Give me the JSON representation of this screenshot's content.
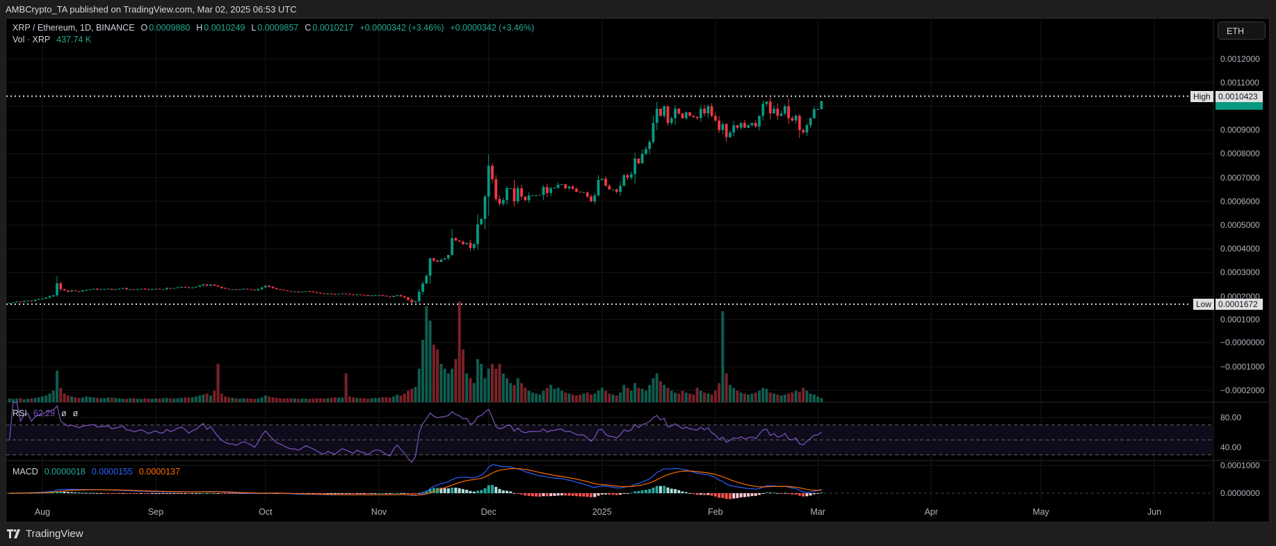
{
  "header": {
    "published": "AMBCrypto_TA published on TradingView.com, Mar 02, 2025 06:53 UTC"
  },
  "legend": {
    "symbol": "XRP / Ethereum, 1D, BINANCE",
    "o_label": "O",
    "o": "0.0009880",
    "h_label": "H",
    "h": "0.0010249",
    "l_label": "L",
    "l": "0.0009857",
    "c_label": "C",
    "c": "0.0010217",
    "change1": "+0.0000342 (+3.46%)",
    "change2": "+0.0000342 (+3.46%)",
    "vol_label": "Vol · XRP",
    "vol_value": "437.74 K",
    "rsi_label": "RSI",
    "rsi_value": "62.29",
    "rsi_icon1": "ø",
    "rsi_icon2": "ø",
    "macd_label": "MACD",
    "macd_hist": "0.0000018",
    "macd_line": "0.0000155",
    "macd_signal": "0.0000137"
  },
  "currency_button": "ETH",
  "price_axis": [
    "0.0012000",
    "0.0011000",
    "0.0009000",
    "0.0008000",
    "0.0007000",
    "0.0006000",
    "0.0005000",
    "0.0004000",
    "0.0003000",
    "0.0002000"
  ],
  "volume_axis": [
    "0.0001000",
    "−0.0000000",
    "−0.0001000",
    "−0.0002000"
  ],
  "rsi_axis": [
    "80.00",
    "40.00"
  ],
  "macd_axis": [
    "0.0001000",
    "0.0000000"
  ],
  "high": {
    "label": "High",
    "value": "0.0010423"
  },
  "low": {
    "label": "Low",
    "value": "0.0001672"
  },
  "current_price": "0.0010217",
  "time_axis": [
    "Aug",
    "Sep",
    "Oct",
    "Nov",
    "Dec",
    "2025",
    "Feb",
    "Mar",
    "Apr",
    "May",
    "Jun"
  ],
  "footer": {
    "logo_text": "TradingView"
  },
  "colors": {
    "up": "#089981",
    "down": "#f23645",
    "rsi": "#7e57c2",
    "macd": "#2962ff",
    "signal": "#ff6d00",
    "bg": "#000000"
  },
  "chart_data": {
    "type": "candlestick",
    "interval": "1D",
    "start_date": "2024-07-23",
    "end_date": "2025-03-02",
    "last_open": 0.000988,
    "last_high": 0.0010249,
    "last_low": 0.0009857,
    "close_e4": [
      1.72,
      1.75,
      1.78,
      1.76,
      1.8,
      1.82,
      1.8,
      1.85,
      1.88,
      1.9,
      1.95,
      2.0,
      2.05,
      2.55,
      2.3,
      2.25,
      2.2,
      2.25,
      2.22,
      2.2,
      2.25,
      2.28,
      2.3,
      2.32,
      2.28,
      2.3,
      2.3,
      2.32,
      2.28,
      2.3,
      2.32,
      2.35,
      2.3,
      2.3,
      2.28,
      2.3,
      2.32,
      2.3,
      2.28,
      2.3,
      2.32,
      2.3,
      2.3,
      2.35,
      2.33,
      2.35,
      2.38,
      2.4,
      2.38,
      2.35,
      2.38,
      2.4,
      2.45,
      2.5,
      2.45,
      2.5,
      2.45,
      2.4,
      2.35,
      2.32,
      2.3,
      2.3,
      2.28,
      2.3,
      2.32,
      2.3,
      2.28,
      2.25,
      2.3,
      2.38,
      2.45,
      2.4,
      2.35,
      2.3,
      2.28,
      2.25,
      2.22,
      2.2,
      2.2,
      2.18,
      2.2,
      2.22,
      2.2,
      2.18,
      2.15,
      2.12,
      2.1,
      2.12,
      2.1,
      2.08,
      2.1,
      2.12,
      2.1,
      2.08,
      2.06,
      2.08,
      2.06,
      2.05,
      2.02,
      2.04,
      2.05,
      2.05,
      2.03,
      2.0,
      1.98,
      2.02,
      2.05,
      2.0,
      1.95,
      1.85,
      1.75,
      1.8,
      2.19,
      2.54,
      2.87,
      3.6,
      3.5,
      3.45,
      3.55,
      3.6,
      3.74,
      4.45,
      4.35,
      4.3,
      4.2,
      4.25,
      4.04,
      4.2,
      5.03,
      5.26,
      6.2,
      7.5,
      6.93,
      6.1,
      5.9,
      6.05,
      6.55,
      6.55,
      6.0,
      6.55,
      6.2,
      6.05,
      6.25,
      6.25,
      6.25,
      6.27,
      6.6,
      6.35,
      6.55,
      6.57,
      6.7,
      6.72,
      6.55,
      6.62,
      6.53,
      6.4,
      6.38,
      6.38,
      6.2,
      6.0,
      6.25,
      6.9,
      6.95,
      6.65,
      6.5,
      6.5,
      6.4,
      6.65,
      7.1,
      7.0,
      7.15,
      7.8,
      7.6,
      8.0,
      8.2,
      8.5,
      9.3,
      9.9,
      9.6,
      10.0,
      9.3,
      9.5,
      9.9,
      9.7,
      9.5,
      9.75,
      9.6,
      9.55,
      9.5,
      9.9,
      9.7,
      10.0,
      9.6,
      9.4,
      9.0,
      9.25,
      8.7,
      8.9,
      9.2,
      9.1,
      9.3,
      9.1,
      9.2,
      9.3,
      9.15,
      9.6,
      10.1,
      10.2,
      9.7,
      9.9,
      9.6,
      9.7,
      10.0,
      9.5,
      9.4,
      9.6,
      9.0,
      8.9,
      9.2,
      9.5,
      9.88,
      9.88,
      10.217
    ],
    "volume_k": [
      400,
      350,
      380,
      420,
      300,
      350,
      400,
      450,
      500,
      600,
      700,
      900,
      1200,
      3300,
      1500,
      900,
      700,
      600,
      500,
      450,
      500,
      600,
      550,
      500,
      450,
      400,
      420,
      500,
      480,
      450,
      400,
      380,
      350,
      400,
      420,
      380,
      350,
      400,
      380,
      360,
      400,
      380,
      420,
      450,
      400,
      380,
      420,
      450,
      500,
      480,
      520,
      600,
      700,
      800,
      900,
      700,
      1200,
      4000,
      900,
      600,
      500,
      450,
      400,
      380,
      420,
      400,
      380,
      360,
      400,
      500,
      700,
      600,
      500,
      450,
      400,
      380,
      420,
      400,
      380,
      360,
      400,
      380,
      350,
      380,
      400,
      420,
      380,
      400,
      450,
      500,
      480,
      500,
      3000,
      600,
      500,
      450,
      420,
      400,
      380,
      420,
      450,
      450,
      500,
      520,
      480,
      600,
      800,
      700,
      900,
      1200,
      1400,
      1600,
      3500,
      6500,
      10000,
      8500,
      6000,
      5500,
      4000,
      3500,
      3000,
      3500,
      4500,
      10500,
      5500,
      3000,
      2500,
      2000,
      4500,
      4000,
      2500,
      3500,
      4000,
      3500,
      4000,
      3000,
      2500,
      2000,
      1800,
      2500,
      2000,
      1500,
      1200,
      1000,
      900,
      800,
      1200,
      1500,
      1800,
      1400,
      1500,
      1200,
      1000,
      900,
      800,
      700,
      800,
      900,
      1000,
      800,
      900,
      1200,
      1500,
      1200,
      900,
      800,
      700,
      1000,
      1800,
      1500,
      1200,
      2000,
      1500,
      1400,
      1200,
      1800,
      2500,
      3000,
      2200,
      1800,
      1500,
      1200,
      1000,
      900,
      1200,
      1000,
      900,
      800,
      1500,
      1200,
      1000,
      900,
      800,
      1200,
      2000,
      9500,
      3000,
      1800,
      1500,
      1200,
      1000,
      900,
      800,
      900,
      1000,
      1200,
      1500,
      1400,
      1000,
      900,
      800,
      700,
      800,
      900,
      1000,
      1200,
      1100,
      1500,
      1200,
      900,
      800,
      600,
      437.74
    ],
    "price_range": [
      0.0,
      0.00125
    ],
    "rsi_bands": [
      30,
      50,
      70
    ],
    "grid": true
  }
}
